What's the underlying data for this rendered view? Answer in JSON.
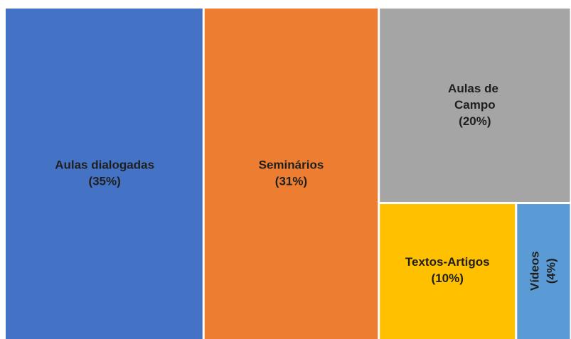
{
  "chart_data": {
    "type": "treemap",
    "categories": [
      "Aulas dialogadas",
      "Seminários",
      "Aulas de Campo",
      "Textos-Artigos",
      "Vídeos"
    ],
    "values": [
      35,
      31,
      20,
      10,
      4
    ],
    "value_labels": [
      "(35%)",
      "(31%)",
      "(20%)",
      "(10%)",
      "(4%)"
    ],
    "colors": [
      "#4472c4",
      "#ed7d31",
      "#a5a5a5",
      "#ffc000",
      "#5b9bd5"
    ]
  }
}
